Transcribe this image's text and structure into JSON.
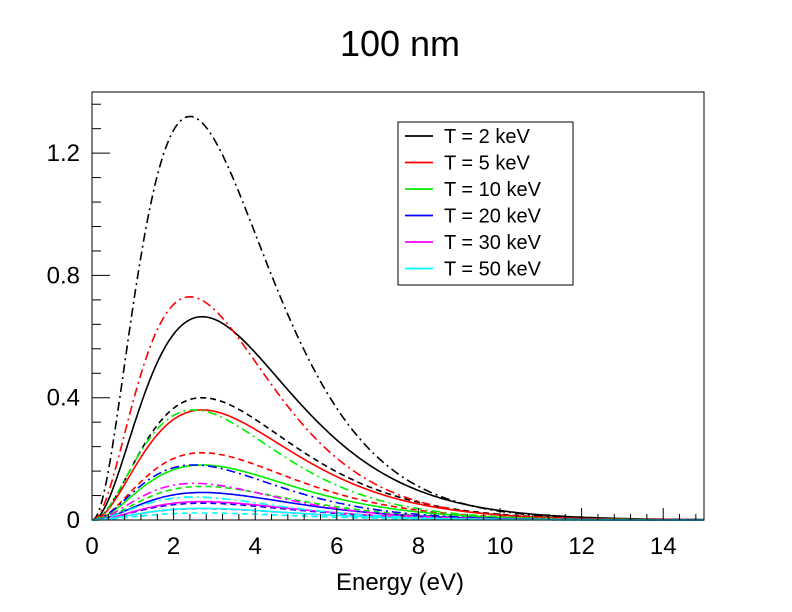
{
  "chart_data": {
    "type": "line",
    "title": "100 nm",
    "xlabel": "Energy (eV)",
    "ylabel": "",
    "xlim": [
      0,
      15
    ],
    "ylim": [
      0,
      1.4
    ],
    "xticks": [
      0,
      2,
      4,
      6,
      8,
      10,
      12,
      14
    ],
    "yticks": [
      0,
      0.4,
      0.8,
      1.2
    ],
    "xtick_labels": [
      "0",
      "2",
      "4",
      "6",
      "8",
      "10",
      "12",
      "14"
    ],
    "ytick_labels": [
      "0",
      "0.4",
      "0.8",
      "1.2"
    ],
    "grid": false,
    "legend_position": "top-right",
    "legend": [
      {
        "label": "T = 2 keV",
        "color": "#000000"
      },
      {
        "label": "T = 5 keV",
        "color": "#ff0000"
      },
      {
        "label": "T = 10 keV",
        "color": "#00ee00"
      },
      {
        "label": "T = 20 keV",
        "color": "#0000ff"
      },
      {
        "label": "T = 30 keV",
        "color": "#ff00ff"
      },
      {
        "label": "T = 50 keV",
        "color": "#00ffff"
      }
    ],
    "series": [
      {
        "name": "T = 2 keV (dash-dot)",
        "color": "#000000",
        "style": "dashdot",
        "peak": 1.32,
        "peak_x": 2.4
      },
      {
        "name": "T = 2 keV (solid)",
        "color": "#000000",
        "style": "solid",
        "peak": 0.665,
        "peak_x": 2.7
      },
      {
        "name": "T = 2 keV (dashed)",
        "color": "#000000",
        "style": "dashed",
        "peak": 0.4,
        "peak_x": 2.7
      },
      {
        "name": "T = 5 keV (dash-dot)",
        "color": "#ff0000",
        "style": "dashdot",
        "peak": 0.73,
        "peak_x": 2.4
      },
      {
        "name": "T = 5 keV (solid)",
        "color": "#ff0000",
        "style": "solid",
        "peak": 0.36,
        "peak_x": 2.7
      },
      {
        "name": "T = 5 keV (dashed)",
        "color": "#ff0000",
        "style": "dashed",
        "peak": 0.22,
        "peak_x": 2.7
      },
      {
        "name": "T = 10 keV (dash-dot)",
        "color": "#00ee00",
        "style": "dashdot",
        "peak": 0.36,
        "peak_x": 2.5
      },
      {
        "name": "T = 10 keV (solid)",
        "color": "#00ee00",
        "style": "solid",
        "peak": 0.18,
        "peak_x": 2.7
      },
      {
        "name": "T = 10 keV (dashed)",
        "color": "#00ee00",
        "style": "dashed",
        "peak": 0.11,
        "peak_x": 2.7
      },
      {
        "name": "T = 20 keV (dash-dot)",
        "color": "#0000ff",
        "style": "dashdot",
        "peak": 0.18,
        "peak_x": 2.5
      },
      {
        "name": "T = 20 keV (solid)",
        "color": "#0000ff",
        "style": "solid",
        "peak": 0.09,
        "peak_x": 2.7
      },
      {
        "name": "T = 20 keV (dashed)",
        "color": "#0000ff",
        "style": "dashed",
        "peak": 0.055,
        "peak_x": 2.7
      },
      {
        "name": "T = 30 keV (dash-dot)",
        "color": "#ff00ff",
        "style": "dashdot",
        "peak": 0.12,
        "peak_x": 2.5
      },
      {
        "name": "T = 30 keV (solid)",
        "color": "#ff00ff",
        "style": "solid",
        "peak": 0.06,
        "peak_x": 2.7
      },
      {
        "name": "T = 30 keV (dashed)",
        "color": "#ff00ff",
        "style": "dashed",
        "peak": 0.037,
        "peak_x": 2.7
      },
      {
        "name": "T = 50 keV (dash-dot)",
        "color": "#00ffff",
        "style": "dashdot",
        "peak": 0.075,
        "peak_x": 2.5
      },
      {
        "name": "T = 50 keV (solid)",
        "color": "#00ffff",
        "style": "solid",
        "peak": 0.038,
        "peak_x": 2.7
      },
      {
        "name": "T = 50 keV (dashed)",
        "color": "#00ffff",
        "style": "dashed",
        "peak": 0.023,
        "peak_x": 2.7
      }
    ]
  }
}
